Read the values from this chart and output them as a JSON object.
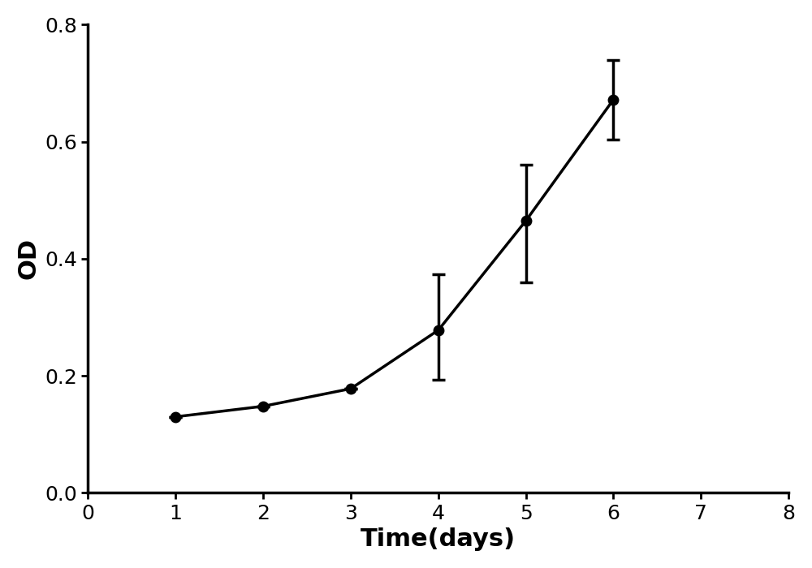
{
  "x": [
    1,
    2,
    3,
    4,
    5,
    6
  ],
  "y": [
    0.13,
    0.148,
    0.178,
    0.278,
    0.465,
    0.672
  ],
  "yerr_upper": [
    0.0,
    0.0,
    0.0,
    0.095,
    0.095,
    0.068
  ],
  "yerr_lower": [
    0.0,
    0.0,
    0.0,
    0.085,
    0.105,
    0.068
  ],
  "line_color": "#000000",
  "marker": "o",
  "marker_size": 9,
  "marker_facecolor": "#000000",
  "line_width": 2.5,
  "xlabel": "Time(days)",
  "ylabel": "OD",
  "xlim": [
    0,
    8
  ],
  "ylim": [
    0.0,
    0.8
  ],
  "xticks": [
    0,
    1,
    2,
    3,
    4,
    5,
    6,
    7,
    8
  ],
  "yticks": [
    0.0,
    0.2,
    0.4,
    0.6,
    0.8
  ],
  "xlabel_fontsize": 22,
  "ylabel_fontsize": 22,
  "tick_labelsize": 18,
  "capsize": 6,
  "elinewidth": 2.5,
  "capthick": 2.5,
  "background_color": "#ffffff",
  "spine_linewidth": 2.5
}
